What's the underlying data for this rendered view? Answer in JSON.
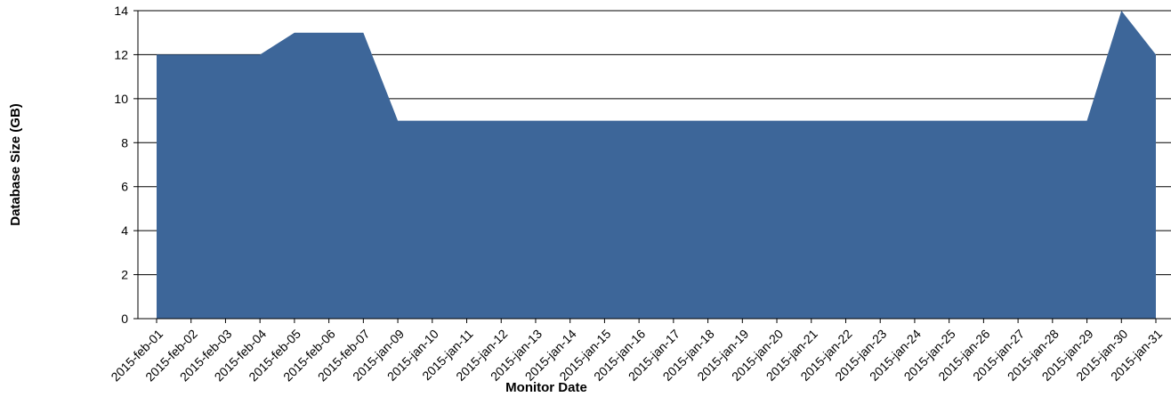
{
  "chart_data": {
    "type": "area",
    "title": "",
    "xlabel": "Monitor Date",
    "ylabel": "Database Size (GB)",
    "ylim": [
      0,
      14
    ],
    "yticks": [
      0,
      2,
      4,
      6,
      8,
      10,
      12,
      14
    ],
    "grid": true,
    "categories": [
      "2015-feb-01",
      "2015-feb-02",
      "2015-feb-03",
      "2015-feb-04",
      "2015-feb-05",
      "2015-feb-06",
      "2015-feb-07",
      "2015-jan-09",
      "2015-jan-10",
      "2015-jan-11",
      "2015-jan-12",
      "2015-jan-13",
      "2015-jan-14",
      "2015-jan-15",
      "2015-jan-16",
      "2015-jan-17",
      "2015-jan-18",
      "2015-jan-19",
      "2015-jan-20",
      "2015-jan-21",
      "2015-jan-22",
      "2015-jan-23",
      "2015-jan-24",
      "2015-jan-25",
      "2015-jan-26",
      "2015-jan-27",
      "2015-jan-28",
      "2015-jan-29",
      "2015-jan-30",
      "2015-jan-31"
    ],
    "values": [
      12,
      12,
      12,
      12,
      13,
      13,
      13,
      9,
      9,
      9,
      9,
      9,
      9,
      9,
      9,
      9,
      9,
      9,
      9,
      9,
      9,
      9,
      9,
      9,
      9,
      9,
      9,
      9,
      14,
      12
    ],
    "colors": {
      "fill": "#3d6699",
      "grid": "#000000",
      "axis": "#000000"
    }
  }
}
